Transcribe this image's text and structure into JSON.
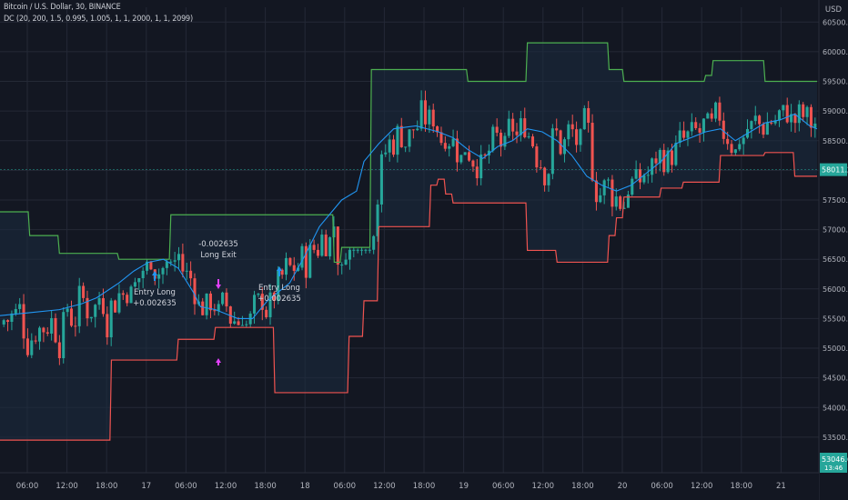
{
  "header": {
    "symbol_line": "Bitcoin / U.S. Dollar, 30, BINANCE",
    "indicator_line": "DC (20, 200, 1.5, 0.995, 1.005, 1, 1, 2000, 1, 1, 2099)",
    "currency": "USD"
  },
  "colors": {
    "background": "#131722",
    "grid": "#242936",
    "candle_up": "#26a69a",
    "candle_down": "#ef5350",
    "upper_band": "#4caf50",
    "lower_band": "#ef5350",
    "basis": "#2196f3",
    "channel_fill": "#1b2b40",
    "price_badge": "#26a69a",
    "signal_long": "#2196f3",
    "signal_exit": "#e040fb"
  },
  "price_badges": {
    "current": "58011.26",
    "bottom": "53046.67",
    "bottom_sub": "13:46"
  },
  "annotations": [
    {
      "id": "entry1",
      "lines": [
        "Entry Long",
        "+0.002635"
      ]
    },
    {
      "id": "exit1",
      "lines": [
        "-0.002635",
        "Long Exit"
      ]
    },
    {
      "id": "entry2",
      "lines": [
        "Entry Long",
        "+0.002635"
      ]
    }
  ],
  "chart_data": {
    "type": "candlestick",
    "symbol": "Bitcoin / U.S. Dollar",
    "interval": "30",
    "exchange": "BINANCE",
    "ylim": [
      53000,
      60500
    ],
    "y_ticks": [
      {
        "value": 53500,
        "label": "53500.00"
      },
      {
        "value": 54000,
        "label": "54000.00"
      },
      {
        "value": 54500,
        "label": "54500.00"
      },
      {
        "value": 55000,
        "label": "55000.00"
      },
      {
        "value": 55500,
        "label": "55500.00"
      },
      {
        "value": 56000,
        "label": "56000.00"
      },
      {
        "value": 56500,
        "label": "56500.00"
      },
      {
        "value": 57000,
        "label": "57000.00"
      },
      {
        "value": 57500,
        "label": "57500.00"
      },
      {
        "value": 58000,
        "label": "58000.00"
      },
      {
        "value": 58500,
        "label": "58500.00"
      },
      {
        "value": 59000,
        "label": "59000.00"
      },
      {
        "value": 59500,
        "label": "59500.00"
      },
      {
        "value": 60000,
        "label": "60000.00"
      },
      {
        "value": 60500,
        "label": "60500.00"
      }
    ],
    "x_ticks": [
      "06:00",
      "12:00",
      "18:00",
      "17",
      "06:00",
      "12:00",
      "18:00",
      "18",
      "06:00",
      "12:00",
      "18:00",
      "19",
      "06:00",
      "12:00",
      "18:00",
      "20",
      "06:00",
      "12:00",
      "18:00",
      "21"
    ],
    "series": {
      "upper": [
        [
          55000,
          57300
        ],
        [
          55200,
          56900
        ],
        [
          55400,
          56600
        ],
        [
          55800,
          56500
        ],
        [
          56100,
          56500
        ],
        [
          56150,
          57250
        ],
        [
          56800,
          57250
        ],
        [
          57250,
          56450
        ],
        [
          57300,
          56700
        ],
        [
          57450,
          56700
        ],
        [
          57500,
          59700
        ],
        [
          57700,
          59700
        ],
        [
          58000,
          59700
        ],
        [
          58150,
          59500
        ],
        [
          58300,
          59500
        ],
        [
          58450,
          59500
        ],
        [
          58550,
          60150
        ],
        [
          58700,
          60150
        ],
        [
          58900,
          60150
        ],
        [
          59100,
          59700
        ],
        [
          59200,
          59500
        ],
        [
          59250,
          59500
        ],
        [
          59500,
          59500
        ],
        [
          59650,
          59500
        ],
        [
          59700,
          59500
        ],
        [
          59750,
          59600
        ],
        [
          59800,
          59850
        ],
        [
          59900,
          59850
        ],
        [
          60000,
          59850
        ],
        [
          60150,
          59500
        ],
        [
          60250,
          59500
        ],
        [
          60300,
          59500
        ],
        [
          60500,
          59500
        ]
      ],
      "lower": [
        [
          55000,
          53450
        ],
        [
          55700,
          53450
        ],
        [
          55750,
          54800
        ],
        [
          56150,
          54800
        ],
        [
          56200,
          55150
        ],
        [
          56400,
          55150
        ],
        [
          56450,
          55350
        ],
        [
          56800,
          55350
        ],
        [
          56850,
          54250
        ],
        [
          57300,
          54250
        ],
        [
          57350,
          55200
        ],
        [
          57450,
          55800
        ],
        [
          57550,
          57050
        ],
        [
          57900,
          57750
        ],
        [
          57950,
          57850
        ],
        [
          58000,
          57600
        ],
        [
          58050,
          57450
        ],
        [
          58500,
          57450
        ],
        [
          58550,
          56650
        ],
        [
          58700,
          56650
        ],
        [
          58750,
          56450
        ],
        [
          59050,
          56450
        ],
        [
          59100,
          56900
        ],
        [
          59150,
          57200
        ],
        [
          59200,
          57550
        ],
        [
          59400,
          57550
        ],
        [
          59450,
          57700
        ],
        [
          59550,
          57700
        ],
        [
          59600,
          57800
        ],
        [
          59800,
          57800
        ],
        [
          59850,
          58250
        ],
        [
          60100,
          58250
        ],
        [
          60150,
          58300
        ],
        [
          60300,
          58300
        ],
        [
          60350,
          57900
        ],
        [
          60500,
          57900
        ]
      ],
      "basis": [
        [
          55000,
          55550
        ],
        [
          55200,
          55600
        ],
        [
          55400,
          55650
        ],
        [
          55550,
          55750
        ],
        [
          55650,
          55850
        ],
        [
          55800,
          56100
        ],
        [
          55900,
          56300
        ],
        [
          56000,
          56450
        ],
        [
          56100,
          56500
        ],
        [
          56200,
          56350
        ],
        [
          56300,
          55950
        ],
        [
          56350,
          55700
        ],
        [
          56450,
          55650
        ],
        [
          56600,
          55500
        ],
        [
          56700,
          55500
        ],
        [
          56800,
          55800
        ],
        [
          56950,
          56100
        ],
        [
          57050,
          56550
        ],
        [
          57150,
          57050
        ],
        [
          57300,
          57500
        ],
        [
          57400,
          57650
        ],
        [
          57450,
          58150
        ],
        [
          57550,
          58450
        ],
        [
          57650,
          58700
        ],
        [
          57800,
          58750
        ],
        [
          57950,
          58650
        ],
        [
          58050,
          58550
        ],
        [
          58150,
          58350
        ],
        [
          58250,
          58200
        ],
        [
          58350,
          58400
        ],
        [
          58450,
          58500
        ],
        [
          58550,
          58700
        ],
        [
          58650,
          58650
        ],
        [
          58750,
          58500
        ],
        [
          58850,
          58250
        ],
        [
          58950,
          57900
        ],
        [
          59050,
          57750
        ],
        [
          59150,
          57650
        ],
        [
          59250,
          57750
        ],
        [
          59300,
          57850
        ],
        [
          59350,
          57950
        ],
        [
          59450,
          58150
        ],
        [
          59550,
          58450
        ],
        [
          59650,
          58550
        ],
        [
          59750,
          58650
        ],
        [
          59850,
          58700
        ],
        [
          59950,
          58500
        ],
        [
          60050,
          58650
        ],
        [
          60150,
          58800
        ],
        [
          60250,
          58850
        ],
        [
          60350,
          58950
        ],
        [
          60450,
          58750
        ],
        [
          60500,
          58700
        ]
      ],
      "ohlc_generated_seed": 7
    }
  }
}
